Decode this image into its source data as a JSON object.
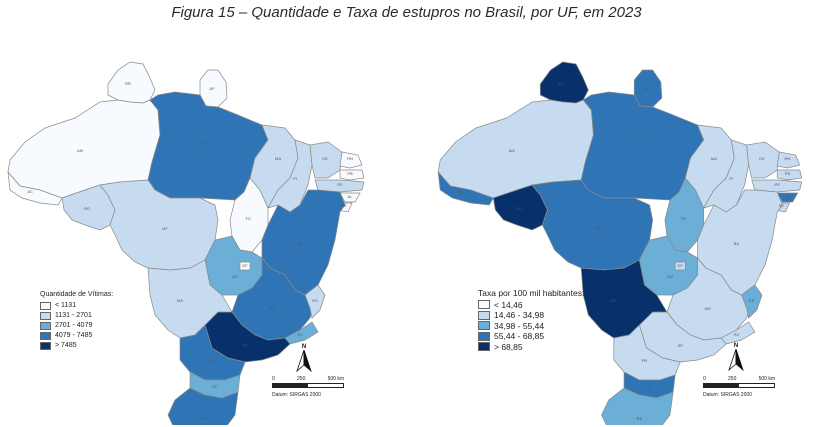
{
  "figure": {
    "title": "Figura 15 – Quantidade e Taxa de estupros no Brasil, por UF, em 2023"
  },
  "maps": [
    {
      "id": "quantidade",
      "legend_title": "Quantidade de Vítimas:",
      "classes": [
        {
          "label": "< 1131",
          "color": "#f7fbff"
        },
        {
          "label": "1131 - 2701",
          "color": "#c6dbef"
        },
        {
          "label": "2701 - 4079",
          "color": "#6baed6"
        },
        {
          "label": "4079 - 7485",
          "color": "#2f75b5"
        },
        {
          "label": "> 7485",
          "color": "#08306b"
        }
      ],
      "state_class": {
        "RR": 0,
        "AP": 0,
        "AM": 0,
        "PA": 3,
        "AC": 0,
        "RO": 1,
        "MT": 1,
        "TO": 0,
        "MA": 1,
        "PI": 1,
        "CE": 1,
        "RN": 0,
        "PB": 0,
        "PE": 1,
        "AL": 0,
        "SE": 0,
        "BA": 3,
        "GO": 2,
        "DF": 0,
        "MG": 3,
        "ES": 1,
        "RJ": 2,
        "SP": 4,
        "MS": 1,
        "PR": 3,
        "SC": 2,
        "RS": 3
      },
      "north_label": "N",
      "scale": {
        "ticks": [
          "0",
          "250",
          "500 km"
        ],
        "datum": "Datum: SIRGAS 2000"
      }
    },
    {
      "id": "taxa",
      "legend_title": "Taxa por 100 mil habitantes:",
      "classes": [
        {
          "label": "< 14,46",
          "color": "#f7fbff"
        },
        {
          "label": "14,46 - 34,98",
          "color": "#c6dbef"
        },
        {
          "label": "34,98 - 55,44",
          "color": "#6baed6"
        },
        {
          "label": "55,44 - 68,85",
          "color": "#2f75b5"
        },
        {
          "label": "> 68,85",
          "color": "#08306b"
        }
      ],
      "state_class": {
        "RR": 4,
        "AP": 3,
        "AM": 1,
        "PA": 3,
        "AC": 3,
        "RO": 4,
        "MT": 3,
        "TO": 2,
        "MA": 1,
        "PI": 1,
        "CE": 1,
        "RN": 1,
        "PB": 1,
        "PE": 1,
        "AL": 3,
        "SE": 1,
        "BA": 1,
        "GO": 2,
        "DF": 1,
        "MG": 1,
        "ES": 2,
        "RJ": 1,
        "SP": 1,
        "MS": 4,
        "PR": 1,
        "SC": 3,
        "RS": 2
      },
      "north_label": "N",
      "scale": {
        "ticks": [
          "0",
          "250",
          "500 km"
        ],
        "datum": "Datum: SIRGAS 2000"
      }
    }
  ],
  "uf_labels": [
    "RR",
    "AP",
    "AM",
    "PA",
    "AC",
    "RO",
    "MT",
    "TO",
    "MA",
    "PI",
    "CE",
    "RN",
    "PB",
    "PE",
    "AL",
    "SE",
    "BA",
    "GO",
    "DF",
    "MG",
    "ES",
    "RJ",
    "SP",
    "MS",
    "PR",
    "SC",
    "RS"
  ]
}
